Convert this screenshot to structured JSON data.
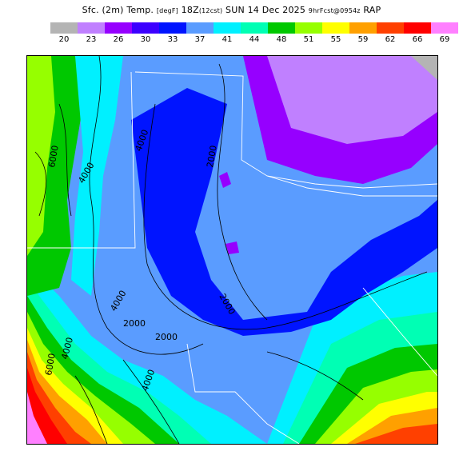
{
  "header": {
    "title_parts": [
      "Sfc. (2m) Temp.",
      "[degF]",
      "18Z",
      "(12cst)",
      "SUN 14 Dec 2025",
      "9hrFcst@0954z",
      "RAP"
    ]
  },
  "legend": {
    "colors": [
      "#b4b4b4",
      "#c080ff",
      "#9600ff",
      "#3c00ff",
      "#0014ff",
      "#5a9cff",
      "#00f0ff",
      "#00ffb4",
      "#00c800",
      "#96ff00",
      "#ffff00",
      "#ffa000",
      "#ff4000",
      "#ff0000",
      "#ff80ff"
    ],
    "tick_labels": [
      "20",
      "23",
      "26",
      "30",
      "33",
      "37",
      "41",
      "44",
      "48",
      "51",
      "55",
      "59",
      "62",
      "66",
      "69"
    ]
  },
  "map": {
    "contour_labels": [
      "6000",
      "4000",
      "4000",
      "2000",
      "2000",
      "2000",
      "4000",
      "6000",
      "4000",
      "2000",
      "4000"
    ]
  }
}
